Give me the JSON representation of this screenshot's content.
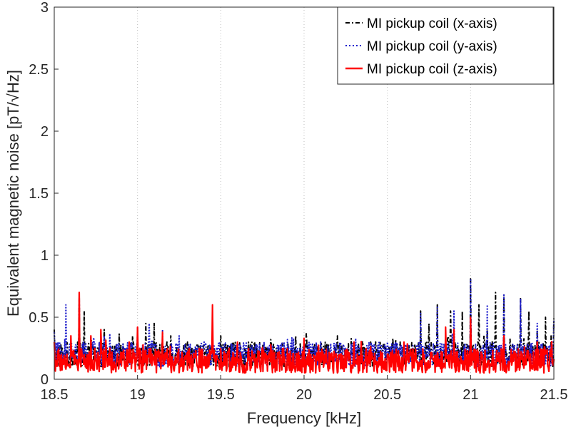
{
  "chart_data": {
    "type": "line",
    "xlabel": "Frequency [kHz]",
    "ylabel": "Equivalent magnetic noise [pT/√Hz]",
    "xlim": [
      18.5,
      21.5
    ],
    "ylim": [
      0,
      3
    ],
    "xticks": [
      "18.5",
      "19",
      "19.5",
      "20",
      "20.5",
      "21",
      "21.5"
    ],
    "yticks": [
      "0",
      "0.5",
      "1",
      "1.5",
      "2",
      "2.5",
      "3"
    ],
    "grid": "x-only dotted",
    "legend_position": "top-right",
    "series": [
      {
        "name": "MI pickup coil (x-axis)",
        "color": "#000000",
        "style": "dash-dot",
        "peaks": [
          [
            18.5,
            0.4
          ],
          [
            18.6,
            0.3
          ],
          [
            18.65,
            0.68
          ],
          [
            18.68,
            0.55
          ],
          [
            18.8,
            0.4
          ],
          [
            18.97,
            0.35
          ],
          [
            19.05,
            0.45
          ],
          [
            19.1,
            0.45
          ],
          [
            19.2,
            0.35
          ],
          [
            19.3,
            0.3
          ],
          [
            19.5,
            0.35
          ],
          [
            19.7,
            0.3
          ],
          [
            19.8,
            0.32
          ],
          [
            19.95,
            0.35
          ],
          [
            20.2,
            0.35
          ],
          [
            20.4,
            0.3
          ],
          [
            20.55,
            0.32
          ],
          [
            20.7,
            0.55
          ],
          [
            20.75,
            0.45
          ],
          [
            20.8,
            0.6
          ],
          [
            20.88,
            0.55
          ],
          [
            20.95,
            0.55
          ],
          [
            21.0,
            0.81
          ],
          [
            21.05,
            0.6
          ],
          [
            21.1,
            0.4
          ],
          [
            21.15,
            0.7
          ],
          [
            21.2,
            0.68
          ],
          [
            21.3,
            0.65
          ],
          [
            21.35,
            0.55
          ],
          [
            21.4,
            0.4
          ],
          [
            21.45,
            0.5
          ],
          [
            21.5,
            0.49
          ]
        ],
        "baseline": [
          0.1,
          0.3
        ]
      },
      {
        "name": "MI pickup coil (y-axis)",
        "color": "#1f1fcc",
        "style": "dotted",
        "peaks": [
          [
            18.5,
            0.38
          ],
          [
            18.57,
            0.6
          ],
          [
            18.65,
            0.65
          ],
          [
            18.8,
            0.35
          ],
          [
            19.0,
            0.42
          ],
          [
            19.07,
            0.45
          ],
          [
            19.15,
            0.4
          ],
          [
            19.25,
            0.35
          ],
          [
            19.4,
            0.3
          ],
          [
            19.6,
            0.3
          ],
          [
            19.9,
            0.32
          ],
          [
            20.1,
            0.3
          ],
          [
            20.3,
            0.3
          ],
          [
            20.5,
            0.3
          ],
          [
            20.7,
            0.53
          ],
          [
            20.8,
            0.58
          ],
          [
            20.9,
            0.55
          ],
          [
            21.0,
            0.8
          ],
          [
            21.1,
            0.6
          ],
          [
            21.2,
            0.68
          ],
          [
            21.3,
            0.65
          ],
          [
            21.4,
            0.45
          ],
          [
            21.5,
            0.48
          ]
        ],
        "baseline": [
          0.1,
          0.3
        ]
      },
      {
        "name": "MI pickup coil (z-axis)",
        "color": "#ff0000",
        "style": "solid",
        "peaks": [
          [
            18.5,
            0.3
          ],
          [
            18.6,
            0.35
          ],
          [
            18.65,
            0.7
          ],
          [
            18.72,
            0.35
          ],
          [
            18.78,
            0.4
          ],
          [
            18.95,
            0.3
          ],
          [
            19.0,
            0.42
          ],
          [
            19.15,
            0.38
          ],
          [
            19.45,
            0.6
          ],
          [
            19.6,
            0.3
          ],
          [
            19.8,
            0.28
          ],
          [
            20.0,
            0.33
          ],
          [
            20.3,
            0.3
          ],
          [
            20.6,
            0.3
          ],
          [
            20.85,
            0.42
          ],
          [
            20.9,
            0.4
          ],
          [
            21.0,
            0.5
          ],
          [
            21.2,
            0.35
          ],
          [
            21.4,
            0.3
          ]
        ],
        "baseline": [
          0.05,
          0.25
        ]
      }
    ]
  }
}
